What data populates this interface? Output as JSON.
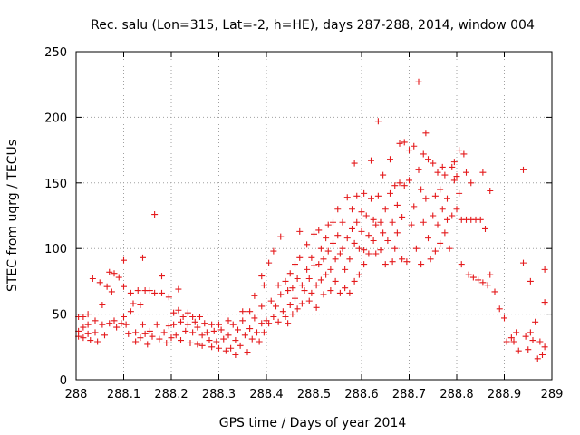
{
  "chart_data": {
    "type": "scatter",
    "title": "Rec. salu (Lon=315, Lat=-2, h=HE), days 287-288, 2014, window 004",
    "xlabel": "GPS time / Days of year 2014",
    "ylabel": "STEC from uqrg / TECUs",
    "xlim": [
      288,
      289
    ],
    "ylim": [
      0,
      250
    ],
    "xticks": [
      288,
      288.1,
      288.2,
      288.3,
      288.4,
      288.5,
      288.6,
      288.7,
      288.8,
      288.9,
      289
    ],
    "xtick_labels": [
      "288",
      "288.1",
      "288.2",
      "288.3",
      "288.4",
      "288.5",
      "288.6",
      "288.7",
      "288.8",
      "288.9",
      "289"
    ],
    "yticks": [
      0,
      50,
      100,
      150,
      200,
      250
    ],
    "ytick_labels": [
      "0",
      "50",
      "100",
      "150",
      "200",
      "250"
    ],
    "grid": true,
    "marker": "+",
    "color": "#e41a1c",
    "series": [
      {
        "name": "STEC",
        "points": [
          [
            288.005,
            48
          ],
          [
            288.005,
            37
          ],
          [
            288.005,
            33
          ],
          [
            288.015,
            48
          ],
          [
            288.015,
            40
          ],
          [
            288.015,
            32
          ],
          [
            288.025,
            50
          ],
          [
            288.025,
            42
          ],
          [
            288.025,
            35
          ],
          [
            288.03,
            30
          ],
          [
            288.035,
            77
          ],
          [
            288.04,
            45
          ],
          [
            288.04,
            36
          ],
          [
            288.045,
            29
          ],
          [
            288.05,
            74
          ],
          [
            288.055,
            57
          ],
          [
            288.055,
            42
          ],
          [
            288.06,
            34
          ],
          [
            288.065,
            71
          ],
          [
            288.07,
            82
          ],
          [
            288.07,
            43
          ],
          [
            288.075,
            67
          ],
          [
            288.08,
            81
          ],
          [
            288.08,
            45
          ],
          [
            288.085,
            40
          ],
          [
            288.09,
            78
          ],
          [
            288.095,
            43
          ],
          [
            288.1,
            91
          ],
          [
            288.1,
            71
          ],
          [
            288.1,
            48
          ],
          [
            288.105,
            42
          ],
          [
            288.11,
            35
          ],
          [
            288.115,
            66
          ],
          [
            288.115,
            52
          ],
          [
            288.12,
            58
          ],
          [
            288.125,
            36
          ],
          [
            288.125,
            29
          ],
          [
            288.13,
            68
          ],
          [
            288.135,
            57
          ],
          [
            288.135,
            32
          ],
          [
            288.14,
            93
          ],
          [
            288.14,
            42
          ],
          [
            288.145,
            68
          ],
          [
            288.145,
            35
          ],
          [
            288.15,
            27
          ],
          [
            288.155,
            68
          ],
          [
            288.155,
            37
          ],
          [
            288.16,
            33
          ],
          [
            288.165,
            66
          ],
          [
            288.165,
            126
          ],
          [
            288.17,
            42
          ],
          [
            288.175,
            31
          ],
          [
            288.18,
            79
          ],
          [
            288.18,
            66
          ],
          [
            288.185,
            36
          ],
          [
            288.19,
            28
          ],
          [
            288.195,
            63
          ],
          [
            288.195,
            41
          ],
          [
            288.2,
            32
          ],
          [
            288.205,
            51
          ],
          [
            288.205,
            42
          ],
          [
            288.21,
            34
          ],
          [
            288.215,
            53
          ],
          [
            288.215,
            69
          ],
          [
            288.22,
            44
          ],
          [
            288.22,
            30
          ],
          [
            288.225,
            48
          ],
          [
            288.23,
            37
          ],
          [
            288.235,
            51
          ],
          [
            288.235,
            42
          ],
          [
            288.24,
            28
          ],
          [
            288.245,
            48
          ],
          [
            288.245,
            36
          ],
          [
            288.25,
            44
          ],
          [
            288.255,
            40
          ],
          [
            288.255,
            27
          ],
          [
            288.26,
            48
          ],
          [
            288.265,
            34
          ],
          [
            288.265,
            26
          ],
          [
            288.27,
            43
          ],
          [
            288.275,
            36
          ],
          [
            288.28,
            30
          ],
          [
            288.285,
            42
          ],
          [
            288.285,
            25
          ],
          [
            288.29,
            37
          ],
          [
            288.295,
            29
          ],
          [
            288.3,
            42
          ],
          [
            288.3,
            24
          ],
          [
            288.305,
            38
          ],
          [
            288.31,
            31
          ],
          [
            288.315,
            22
          ],
          [
            288.32,
            45
          ],
          [
            288.32,
            34
          ],
          [
            288.325,
            24
          ],
          [
            288.33,
            42
          ],
          [
            288.335,
            30
          ],
          [
            288.335,
            19
          ],
          [
            288.34,
            38
          ],
          [
            288.345,
            26
          ],
          [
            288.35,
            45
          ],
          [
            288.35,
            52
          ],
          [
            288.355,
            34
          ],
          [
            288.36,
            21
          ],
          [
            288.365,
            52
          ],
          [
            288.365,
            39
          ],
          [
            288.37,
            31
          ],
          [
            288.375,
            64
          ],
          [
            288.375,
            47
          ],
          [
            288.38,
            36
          ],
          [
            288.385,
            29
          ],
          [
            288.39,
            79
          ],
          [
            288.39,
            56
          ],
          [
            288.39,
            43
          ],
          [
            288.395,
            72
          ],
          [
            288.395,
            36
          ],
          [
            288.4,
            45
          ],
          [
            288.405,
            89
          ],
          [
            288.405,
            43
          ],
          [
            288.41,
            60
          ],
          [
            288.415,
            98
          ],
          [
            288.415,
            48
          ],
          [
            288.42,
            56
          ],
          [
            288.425,
            72
          ],
          [
            288.425,
            44
          ],
          [
            288.43,
            109
          ],
          [
            288.43,
            65
          ],
          [
            288.435,
            52
          ],
          [
            288.44,
            75
          ],
          [
            288.44,
            48
          ],
          [
            288.445,
            68
          ],
          [
            288.445,
            43
          ],
          [
            288.45,
            81
          ],
          [
            288.45,
            57
          ],
          [
            288.455,
            70
          ],
          [
            288.455,
            50
          ],
          [
            288.46,
            88
          ],
          [
            288.46,
            62
          ],
          [
            288.465,
            77
          ],
          [
            288.465,
            54
          ],
          [
            288.47,
            113
          ],
          [
            288.47,
            93
          ],
          [
            288.475,
            72
          ],
          [
            288.475,
            58
          ],
          [
            288.48,
            68
          ],
          [
            288.485,
            103
          ],
          [
            288.485,
            84
          ],
          [
            288.49,
            77
          ],
          [
            288.49,
            60
          ],
          [
            288.495,
            93
          ],
          [
            288.495,
            66
          ],
          [
            288.5,
            111
          ],
          [
            288.5,
            87
          ],
          [
            288.505,
            72
          ],
          [
            288.505,
            55
          ],
          [
            288.51,
            114
          ],
          [
            288.51,
            88
          ],
          [
            288.515,
            100
          ],
          [
            288.515,
            76
          ],
          [
            288.52,
            92
          ],
          [
            288.52,
            65
          ],
          [
            288.525,
            108
          ],
          [
            288.525,
            80
          ],
          [
            288.53,
            118
          ],
          [
            288.53,
            98
          ],
          [
            288.535,
            84
          ],
          [
            288.535,
            68
          ],
          [
            288.54,
            120
          ],
          [
            288.54,
            104
          ],
          [
            288.545,
            92
          ],
          [
            288.545,
            75
          ],
          [
            288.55,
            130
          ],
          [
            288.55,
            110
          ],
          [
            288.555,
            96
          ],
          [
            288.555,
            66
          ],
          [
            288.56,
            120
          ],
          [
            288.56,
            100
          ],
          [
            288.565,
            84
          ],
          [
            288.565,
            70
          ],
          [
            288.57,
            139
          ],
          [
            288.57,
            108
          ],
          [
            288.575,
            92
          ],
          [
            288.575,
            66
          ],
          [
            288.58,
            130
          ],
          [
            288.58,
            115
          ],
          [
            288.585,
            165
          ],
          [
            288.585,
            104
          ],
          [
            288.585,
            75
          ],
          [
            288.59,
            140
          ],
          [
            288.59,
            120
          ],
          [
            288.595,
            100
          ],
          [
            288.595,
            80
          ],
          [
            288.6,
            128
          ],
          [
            288.6,
            113
          ],
          [
            288.605,
            142
          ],
          [
            288.605,
            99
          ],
          [
            288.605,
            88
          ],
          [
            288.61,
            125
          ],
          [
            288.615,
            110
          ],
          [
            288.615,
            96
          ],
          [
            288.62,
            167
          ],
          [
            288.62,
            138
          ],
          [
            288.625,
            122
          ],
          [
            288.625,
            106
          ],
          [
            288.63,
            118
          ],
          [
            288.63,
            96
          ],
          [
            288.635,
            197
          ],
          [
            288.635,
            140
          ],
          [
            288.64,
            120
          ],
          [
            288.64,
            99
          ],
          [
            288.645,
            156
          ],
          [
            288.645,
            112
          ],
          [
            288.65,
            130
          ],
          [
            288.65,
            88
          ],
          [
            288.655,
            106
          ],
          [
            288.66,
            168
          ],
          [
            288.66,
            142
          ],
          [
            288.665,
            120
          ],
          [
            288.665,
            90
          ],
          [
            288.67,
            148
          ],
          [
            288.67,
            100
          ],
          [
            288.675,
            133
          ],
          [
            288.675,
            112
          ],
          [
            288.68,
            180
          ],
          [
            288.68,
            150
          ],
          [
            288.685,
            92
          ],
          [
            288.685,
            124
          ],
          [
            288.69,
            181
          ],
          [
            288.69,
            148
          ],
          [
            288.695,
            90
          ],
          [
            288.7,
            175
          ],
          [
            288.7,
            152
          ],
          [
            288.705,
            118
          ],
          [
            288.71,
            178
          ],
          [
            288.71,
            132
          ],
          [
            288.715,
            100
          ],
          [
            288.72,
            227
          ],
          [
            288.72,
            160
          ],
          [
            288.725,
            145
          ],
          [
            288.725,
            88
          ],
          [
            288.73,
            172
          ],
          [
            288.73,
            120
          ],
          [
            288.735,
            188
          ],
          [
            288.735,
            138
          ],
          [
            288.74,
            168
          ],
          [
            288.74,
            108
          ],
          [
            288.745,
            92
          ],
          [
            288.75,
            165
          ],
          [
            288.75,
            125
          ],
          [
            288.755,
            140
          ],
          [
            288.755,
            98
          ],
          [
            288.76,
            158
          ],
          [
            288.76,
            118
          ],
          [
            288.765,
            145
          ],
          [
            288.765,
            104
          ],
          [
            288.77,
            162
          ],
          [
            288.77,
            130
          ],
          [
            288.775,
            156
          ],
          [
            288.775,
            112
          ],
          [
            288.78,
            138
          ],
          [
            288.78,
            122
          ],
          [
            288.785,
            100
          ],
          [
            288.79,
            162
          ],
          [
            288.79,
            125
          ],
          [
            288.795,
            166
          ],
          [
            288.795,
            152
          ],
          [
            288.8,
            155
          ],
          [
            288.8,
            130
          ],
          [
            288.805,
            175
          ],
          [
            288.805,
            142
          ],
          [
            288.81,
            122
          ],
          [
            288.81,
            88
          ],
          [
            288.815,
            172
          ],
          [
            288.82,
            158
          ],
          [
            288.82,
            122
          ],
          [
            288.825,
            80
          ],
          [
            288.83,
            150
          ],
          [
            288.83,
            122
          ],
          [
            288.835,
            78
          ],
          [
            288.84,
            122
          ],
          [
            288.845,
            76
          ],
          [
            288.85,
            122
          ],
          [
            288.855,
            158
          ],
          [
            288.855,
            74
          ],
          [
            288.86,
            115
          ],
          [
            288.865,
            72
          ],
          [
            288.87,
            144
          ],
          [
            288.87,
            80
          ],
          [
            288.88,
            67
          ],
          [
            288.89,
            54
          ],
          [
            288.9,
            47
          ],
          [
            288.905,
            29
          ],
          [
            288.915,
            32
          ],
          [
            288.92,
            29
          ],
          [
            288.925,
            36
          ],
          [
            288.93,
            22
          ],
          [
            288.94,
            160
          ],
          [
            288.94,
            89
          ],
          [
            288.945,
            33
          ],
          [
            288.95,
            23
          ],
          [
            288.955,
            75
          ],
          [
            288.955,
            36
          ],
          [
            288.96,
            30
          ],
          [
            288.965,
            44
          ],
          [
            288.97,
            16
          ],
          [
            288.975,
            29
          ],
          [
            288.98,
            19
          ],
          [
            288.985,
            84
          ],
          [
            288.985,
            59
          ],
          [
            288.985,
            25
          ]
        ]
      }
    ]
  }
}
